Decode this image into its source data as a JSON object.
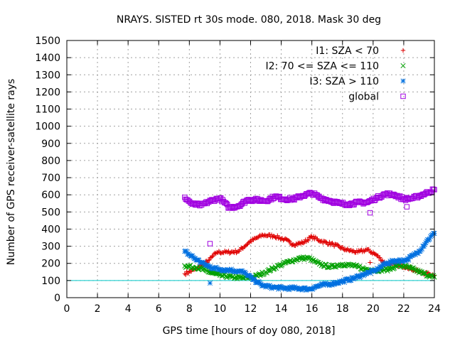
{
  "chart_data": {
    "type": "scatter",
    "title": "NRAYS. SISTED rt 30s mode. 080, 2018. Mask 30 deg",
    "xlabel": "GPS time [hours of doy 080, 2018]",
    "ylabel": "Number of GPS receiver-satellite rays",
    "xlim": [
      0,
      24
    ],
    "ylim": [
      0,
      1500
    ],
    "xticks": [
      "0",
      "2",
      "4",
      "6",
      "8",
      "10",
      "12",
      "14",
      "16",
      "18",
      "20",
      "22",
      "24"
    ],
    "yticks": [
      "0",
      "100",
      "200",
      "300",
      "400",
      "500",
      "600",
      "700",
      "800",
      "900",
      "1000",
      "1100",
      "1200",
      "1300",
      "1400",
      "1500"
    ],
    "grid": true,
    "legend_position": "top-right",
    "threshold_line": {
      "y": 100,
      "color": "#00c8c8"
    },
    "series": [
      {
        "name": "I1: SZA < 70",
        "marker": "+",
        "color": "#e00000",
        "x": [
          7.7,
          8.5,
          9.3,
          9.8,
          10.5,
          11.2,
          12.0,
          12.8,
          13.5,
          14.2,
          14.8,
          15.4,
          16.0,
          16.6,
          17.4,
          18.2,
          19.0,
          19.6,
          20.2,
          20.8,
          21.5,
          22.2,
          23.0,
          24.0
        ],
        "y": [
          140,
          170,
          220,
          265,
          265,
          270,
          330,
          365,
          360,
          340,
          310,
          320,
          355,
          330,
          310,
          280,
          265,
          280,
          250,
          200,
          190,
          180,
          150,
          130
        ]
      },
      {
        "name": "I2: 70 <= SZA <= 110",
        "marker": "x",
        "color": "#00a000",
        "x": [
          7.7,
          8.5,
          9.3,
          10.0,
          10.8,
          11.5,
          12.2,
          13.0,
          13.8,
          14.5,
          15.2,
          15.8,
          16.5,
          17.2,
          18.0,
          18.8,
          19.5,
          20.2,
          21.0,
          21.7,
          22.5,
          23.3,
          24.0
        ],
        "y": [
          185,
          175,
          150,
          130,
          120,
          115,
          120,
          150,
          185,
          210,
          230,
          230,
          195,
          180,
          195,
          185,
          165,
          160,
          165,
          190,
          170,
          140,
          120
        ]
      },
      {
        "name": "I3: SZA > 110",
        "marker": "*",
        "color": "#0070e0",
        "x": [
          7.7,
          8.5,
          9.3,
          10.0,
          10.8,
          11.5,
          12.2,
          12.8,
          13.5,
          14.2,
          15.0,
          15.8,
          16.5,
          17.2,
          18.0,
          18.8,
          19.5,
          20.2,
          20.8,
          21.5,
          22.2,
          23.0,
          23.5,
          24.0
        ],
        "y": [
          270,
          220,
          180,
          165,
          160,
          150,
          105,
          70,
          60,
          55,
          55,
          50,
          70,
          80,
          95,
          115,
          140,
          160,
          200,
          215,
          220,
          270,
          330,
          375
        ]
      },
      {
        "name": "global",
        "marker": "square",
        "color": "#a000e0",
        "x": [
          7.7,
          8.2,
          8.8,
          9.4,
          10.0,
          10.6,
          11.2,
          11.8,
          12.4,
          13.0,
          13.6,
          14.2,
          14.8,
          15.4,
          16.0,
          16.6,
          17.2,
          17.8,
          18.4,
          19.0,
          19.6,
          20.2,
          20.8,
          21.4,
          22.0,
          22.6,
          23.2,
          24.0
        ],
        "y": [
          585,
          545,
          540,
          565,
          580,
          525,
          535,
          570,
          570,
          565,
          590,
          575,
          575,
          595,
          610,
          580,
          565,
          550,
          545,
          555,
          555,
          580,
          605,
          600,
          575,
          580,
          600,
          630
        ]
      }
    ],
    "outliers": [
      {
        "series": "I3: SZA > 110",
        "x": 9.35,
        "y": 85
      },
      {
        "series": "global",
        "x": 9.35,
        "y": 315
      },
      {
        "series": "global",
        "x": 19.8,
        "y": 495
      },
      {
        "series": "global",
        "x": 22.2,
        "y": 530
      },
      {
        "series": "I1: SZA < 70",
        "x": 19.8,
        "y": 205
      }
    ]
  }
}
